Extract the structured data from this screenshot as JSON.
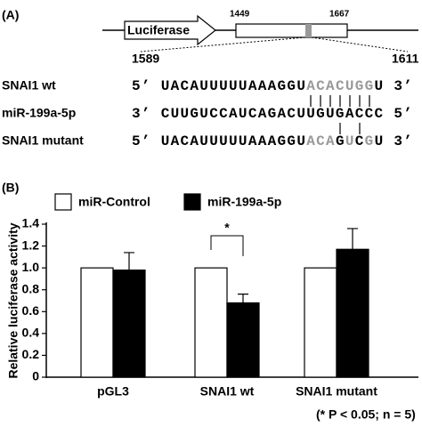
{
  "diagram": {
    "panel_label": "(A)",
    "gene": "Luciferase",
    "start": "1449",
    "end": "1667",
    "site_start": "1589",
    "site_end": "1611",
    "rows": [
      {
        "label": "SNAI1 wt",
        "segments": [
          "5’ UACAUUUUUAAAGGU",
          "ACACUGG",
          "U 3’"
        ],
        "highlight": [
          1
        ]
      },
      {
        "label": "miR-199a-5p",
        "segments": [
          "3’ CUUGUCCAUCAGACUUGUGACCC 5’"
        ]
      },
      {
        "label": "SNAI1 mutant",
        "segments": [
          "5’ UACAUUUUUAAAGGU",
          "ACA",
          "G",
          "U",
          "C",
          "G",
          "U 3’"
        ],
        "highlight": [
          1,
          3,
          5
        ]
      }
    ]
  },
  "chart_data": {
    "type": "bar",
    "panel_label": "(B)",
    "ylabel": "Relative luciferase activity",
    "categories": [
      "pGL3",
      "SNAI1 wt",
      "SNAI1 mutant"
    ],
    "series": [
      {
        "name": "miR-Control",
        "color": "#ffffff",
        "values": [
          1.0,
          1.0,
          1.0
        ]
      },
      {
        "name": "miR-199a-5p",
        "color": "#000000",
        "values": [
          0.98,
          0.68,
          1.17
        ],
        "errors": [
          0.16,
          0.08,
          0.19
        ]
      }
    ],
    "ylim": [
      0,
      1.4
    ],
    "yticks": [
      0,
      0.2,
      0.4,
      0.6,
      0.8,
      {
        "value": 1,
        "label": "1.0"
      },
      1.2,
      1.4
    ],
    "annotation": "*",
    "footnote": "(* P < 0.05; n = 5)"
  }
}
